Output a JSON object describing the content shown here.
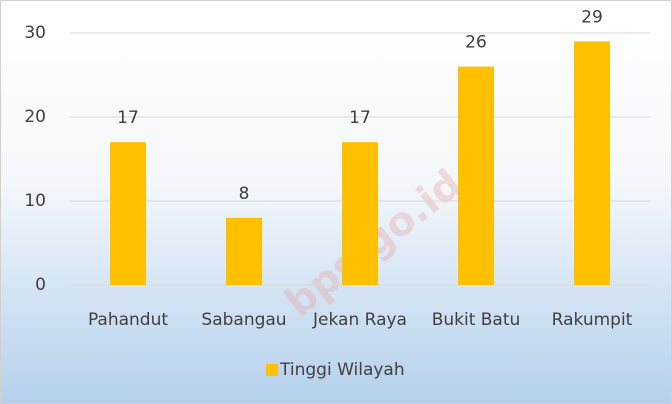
{
  "chart_data": {
    "type": "bar",
    "categories": [
      "Pahandut",
      "Sabangau",
      "Jekan Raya",
      "Bukit Batu",
      "Rakumpit"
    ],
    "series": [
      {
        "name": "Tinggi Wilayah",
        "color": "#ffc000",
        "values": [
          17,
          8,
          17,
          26,
          29
        ]
      }
    ],
    "ylim": [
      0,
      30
    ],
    "yticks": [
      0,
      10,
      20,
      30
    ],
    "grid": true,
    "legend": "bottom",
    "watermark": "bps.go.id"
  }
}
